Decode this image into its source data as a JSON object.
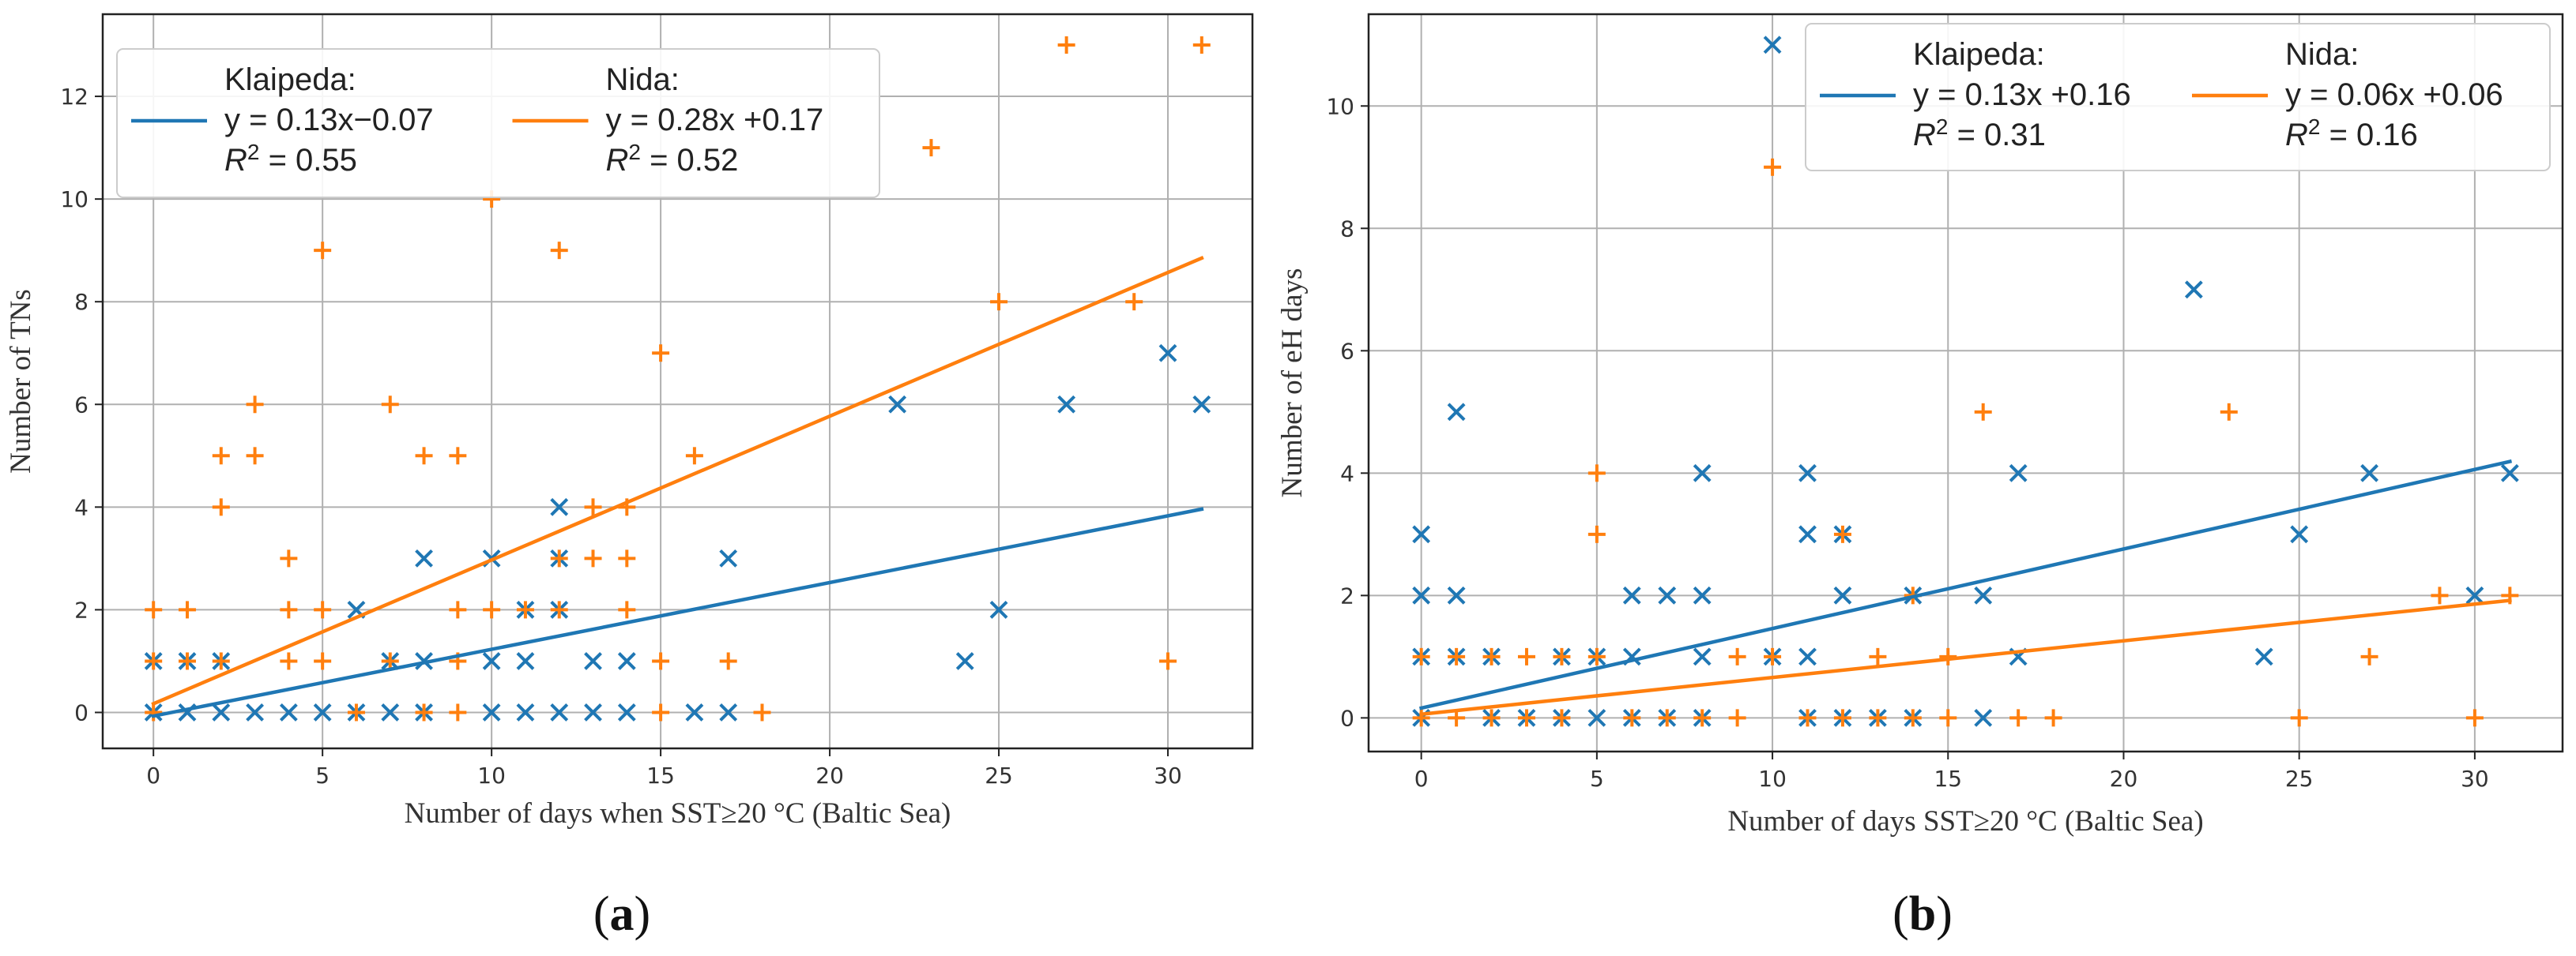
{
  "chart_data": [
    {
      "type": "scatter",
      "panel_label": "(a)",
      "xlabel": "Number of days when SST≥20 °C (Baltic Sea)",
      "ylabel": "Number of TNs",
      "xlim": [
        -1.5,
        32.5
      ],
      "ylim": [
        -0.7,
        13.6
      ],
      "xticks": [
        0,
        5,
        10,
        15,
        20,
        25,
        30
      ],
      "yticks": [
        0,
        2,
        4,
        6,
        8,
        10,
        12
      ],
      "grid": true,
      "legend_position": "top-left",
      "series": [
        {
          "name": "Klaipeda",
          "color": "#1f77b4",
          "marker": "x",
          "legend_lines": [
            "Klaipeda:",
            "y = 0.13x−0.07",
            "R² = 0.55"
          ],
          "fit": {
            "slope": 0.13,
            "intercept": -0.07,
            "x_range": [
              0,
              31
            ]
          },
          "points": [
            [
              0,
              1
            ],
            [
              0,
              0
            ],
            [
              1,
              1
            ],
            [
              1,
              0
            ],
            [
              2,
              1
            ],
            [
              2,
              0
            ],
            [
              3,
              0
            ],
            [
              4,
              0
            ],
            [
              5,
              0
            ],
            [
              6,
              2
            ],
            [
              6,
              0
            ],
            [
              7,
              1
            ],
            [
              7,
              0
            ],
            [
              8,
              3
            ],
            [
              8,
              1
            ],
            [
              8,
              0
            ],
            [
              10,
              3
            ],
            [
              10,
              1
            ],
            [
              10,
              0
            ],
            [
              11,
              2
            ],
            [
              11,
              1
            ],
            [
              11,
              0
            ],
            [
              12,
              4
            ],
            [
              12,
              3
            ],
            [
              12,
              2
            ],
            [
              12,
              0
            ],
            [
              13,
              1
            ],
            [
              13,
              0
            ],
            [
              14,
              1
            ],
            [
              14,
              0
            ],
            [
              16,
              0
            ],
            [
              17,
              3
            ],
            [
              17,
              0
            ],
            [
              22,
              6
            ],
            [
              24,
              1
            ],
            [
              25,
              2
            ],
            [
              27,
              6
            ],
            [
              30,
              7
            ],
            [
              31,
              6
            ]
          ]
        },
        {
          "name": "Nida",
          "color": "#ff7f0e",
          "marker": "+",
          "legend_lines": [
            "Nida:",
            "y = 0.28x  +0.17",
            "R² = 0.52"
          ],
          "fit": {
            "slope": 0.28,
            "intercept": 0.17,
            "x_range": [
              0,
              31
            ]
          },
          "points": [
            [
              0,
              2
            ],
            [
              0,
              1
            ],
            [
              0,
              0
            ],
            [
              1,
              2
            ],
            [
              1,
              1
            ],
            [
              2,
              5
            ],
            [
              2,
              4
            ],
            [
              2,
              1
            ],
            [
              3,
              6
            ],
            [
              3,
              5
            ],
            [
              4,
              3
            ],
            [
              4,
              2
            ],
            [
              4,
              1
            ],
            [
              5,
              9
            ],
            [
              5,
              2
            ],
            [
              5,
              1
            ],
            [
              6,
              0
            ],
            [
              7,
              6
            ],
            [
              7,
              1
            ],
            [
              8,
              5
            ],
            [
              8,
              0
            ],
            [
              9,
              5
            ],
            [
              9,
              2
            ],
            [
              9,
              1
            ],
            [
              9,
              0
            ],
            [
              10,
              10
            ],
            [
              10,
              2
            ],
            [
              11,
              2
            ],
            [
              12,
              9
            ],
            [
              12,
              3
            ],
            [
              12,
              2
            ],
            [
              13,
              4
            ],
            [
              13,
              3
            ],
            [
              14,
              4
            ],
            [
              14,
              3
            ],
            [
              14,
              2
            ],
            [
              15,
              7
            ],
            [
              15,
              1
            ],
            [
              15,
              0
            ],
            [
              16,
              5
            ],
            [
              17,
              1
            ],
            [
              18,
              0
            ],
            [
              23,
              11
            ],
            [
              25,
              8
            ],
            [
              27,
              13
            ],
            [
              29,
              8
            ],
            [
              30,
              1
            ],
            [
              31,
              13
            ]
          ]
        }
      ]
    },
    {
      "type": "scatter",
      "panel_label": "(b)",
      "xlabel": "Number of days SST≥20 °C (Baltic Sea)",
      "ylabel": "Number of eH days",
      "xlim": [
        -1.5,
        32.5
      ],
      "ylim": [
        -0.55,
        11.5
      ],
      "xticks": [
        0,
        5,
        10,
        15,
        20,
        25,
        30
      ],
      "yticks": [
        0,
        2,
        4,
        6,
        8,
        10
      ],
      "grid": true,
      "legend_position": "top-right",
      "series": [
        {
          "name": "Klaipeda",
          "color": "#1f77b4",
          "marker": "x",
          "legend_lines": [
            "Klaipeda:",
            "y = 0.13x +0.16",
            "R² = 0.31"
          ],
          "fit": {
            "slope": 0.13,
            "intercept": 0.16,
            "x_range": [
              0,
              31
            ]
          },
          "points": [
            [
              0,
              3
            ],
            [
              0,
              2
            ],
            [
              0,
              1
            ],
            [
              0,
              0
            ],
            [
              1,
              5
            ],
            [
              1,
              2
            ],
            [
              1,
              1
            ],
            [
              2,
              1
            ],
            [
              2,
              0
            ],
            [
              3,
              0
            ],
            [
              4,
              1
            ],
            [
              4,
              0
            ],
            [
              5,
              1
            ],
            [
              5,
              0
            ],
            [
              6,
              2
            ],
            [
              6,
              1
            ],
            [
              6,
              0
            ],
            [
              7,
              2
            ],
            [
              7,
              0
            ],
            [
              8,
              4
            ],
            [
              8,
              2
            ],
            [
              8,
              1
            ],
            [
              8,
              0
            ],
            [
              10,
              11
            ],
            [
              10,
              1
            ],
            [
              11,
              4
            ],
            [
              11,
              3
            ],
            [
              11,
              1
            ],
            [
              11,
              0
            ],
            [
              12,
              3
            ],
            [
              12,
              2
            ],
            [
              12,
              0
            ],
            [
              13,
              0
            ],
            [
              14,
              2
            ],
            [
              14,
              0
            ],
            [
              16,
              2
            ],
            [
              16,
              0
            ],
            [
              17,
              4
            ],
            [
              17,
              1
            ],
            [
              22,
              7
            ],
            [
              24,
              1
            ],
            [
              25,
              3
            ],
            [
              27,
              4
            ],
            [
              30,
              2
            ],
            [
              31,
              4
            ]
          ]
        },
        {
          "name": "Nida",
          "color": "#ff7f0e",
          "marker": "+",
          "legend_lines": [
            "Nida:",
            "y = 0.06x  +0.06",
            "R² = 0.16"
          ],
          "fit": {
            "slope": 0.06,
            "intercept": 0.06,
            "x_range": [
              0,
              31
            ]
          },
          "points": [
            [
              0,
              1
            ],
            [
              0,
              0
            ],
            [
              1,
              1
            ],
            [
              1,
              0
            ],
            [
              2,
              1
            ],
            [
              2,
              0
            ],
            [
              3,
              1
            ],
            [
              3,
              0
            ],
            [
              4,
              1
            ],
            [
              4,
              0
            ],
            [
              5,
              4
            ],
            [
              5,
              3
            ],
            [
              5,
              1
            ],
            [
              6,
              0
            ],
            [
              7,
              0
            ],
            [
              8,
              0
            ],
            [
              9,
              1
            ],
            [
              9,
              0
            ],
            [
              10,
              9
            ],
            [
              10,
              1
            ],
            [
              11,
              0
            ],
            [
              12,
              3
            ],
            [
              12,
              0
            ],
            [
              13,
              1
            ],
            [
              13,
              0
            ],
            [
              14,
              2
            ],
            [
              14,
              0
            ],
            [
              15,
              1
            ],
            [
              15,
              0
            ],
            [
              16,
              5
            ],
            [
              17,
              0
            ],
            [
              18,
              0
            ],
            [
              23,
              5
            ],
            [
              25,
              0
            ],
            [
              27,
              1
            ],
            [
              29,
              2
            ],
            [
              30,
              0
            ],
            [
              31,
              2
            ]
          ]
        }
      ]
    }
  ]
}
